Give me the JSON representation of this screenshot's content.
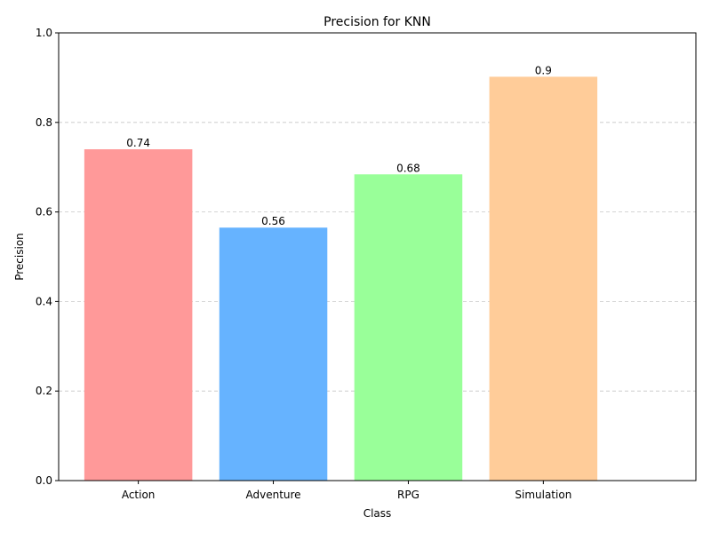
{
  "chart_data": {
    "type": "bar",
    "title": "Precision for KNN",
    "xlabel": "Class",
    "ylabel": "Precision",
    "categories": [
      "Action",
      "Adventure",
      "RPG",
      "Simulation"
    ],
    "values": [
      0.74,
      0.565,
      0.684,
      0.902
    ],
    "value_labels": [
      "0.74",
      "0.56",
      "0.68",
      "0.9"
    ],
    "colors": [
      "#ff9999",
      "#66b3ff",
      "#99ff99",
      "#ffcc99"
    ],
    "ylim": [
      0,
      1
    ],
    "yticks": [
      0,
      0.2,
      0.4,
      0.6,
      0.8,
      1
    ],
    "ytick_labels": [
      "0.0",
      "0.2",
      "0.4",
      "0.6",
      "0.8",
      "1.0"
    ],
    "grid": "y-axis dashed"
  }
}
